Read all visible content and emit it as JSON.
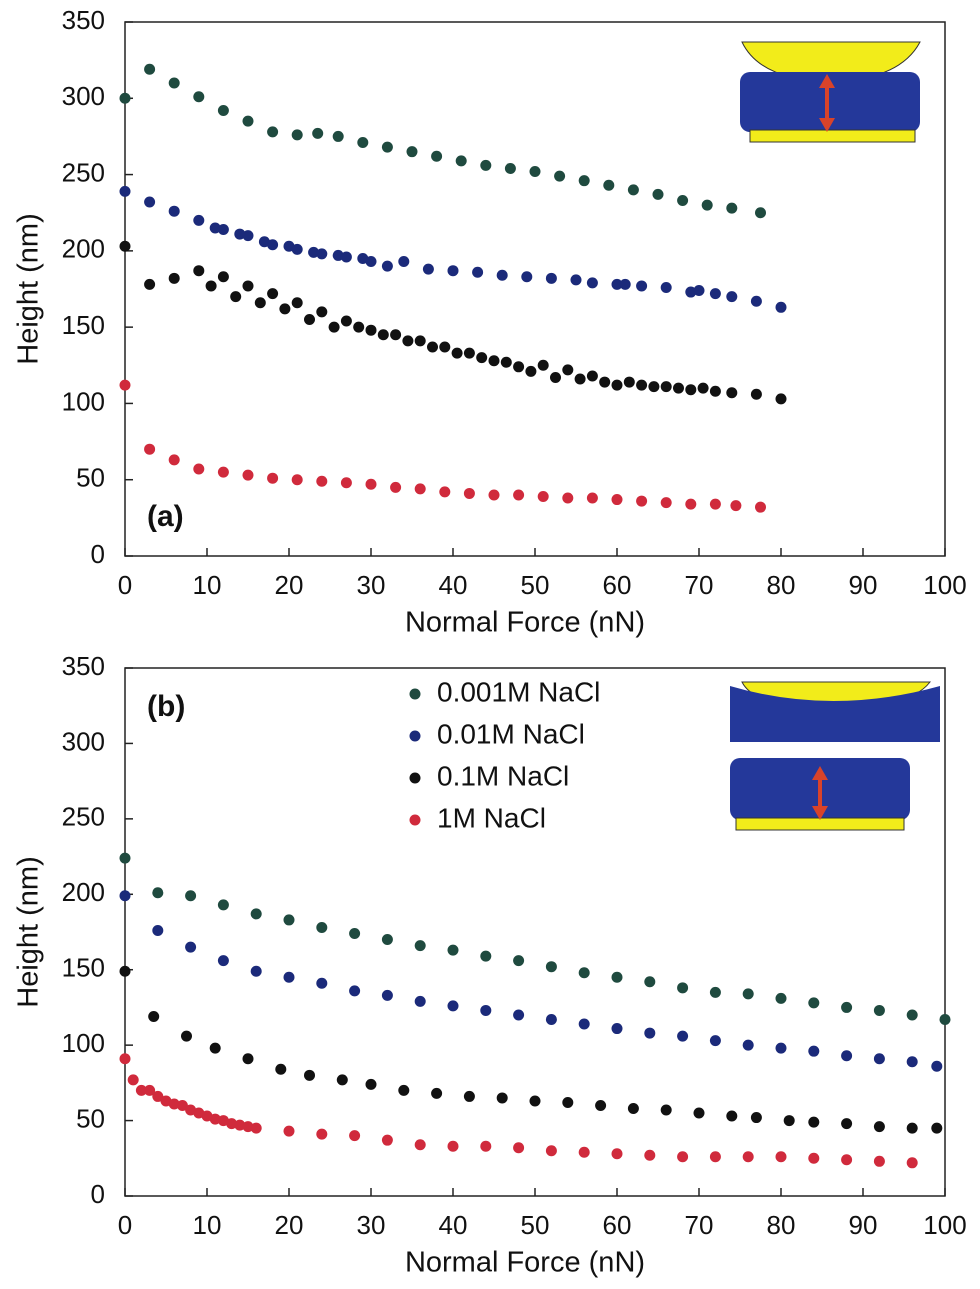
{
  "chart_data": [
    {
      "type": "scatter",
      "annotation": "(a)",
      "xlabel": "Normal Force (nN)",
      "ylabel": "Height (nm)",
      "xlim": [
        0,
        100
      ],
      "ylim": [
        0,
        350
      ],
      "xticks": [
        0,
        10,
        20,
        30,
        40,
        50,
        60,
        70,
        80,
        90,
        100
      ],
      "yticks": [
        0,
        50,
        100,
        150,
        200,
        250,
        300,
        350
      ],
      "series": [
        {
          "color": "#1f4a3f",
          "x": [
            0,
            3,
            6,
            9,
            12,
            15,
            18,
            21,
            23.5,
            26,
            29,
            32,
            35,
            38,
            41,
            44,
            47,
            50,
            53,
            56,
            59,
            62,
            65,
            68,
            71,
            74,
            77.5
          ],
          "values": [
            300,
            319,
            310,
            301,
            292,
            285,
            278,
            276,
            277,
            275,
            271,
            268,
            265,
            262,
            259,
            256,
            254,
            252,
            249,
            246,
            243,
            240,
            237,
            233,
            230,
            228,
            225
          ]
        },
        {
          "color": "#1b2a7a",
          "x": [
            0,
            3,
            6,
            9,
            11,
            12,
            14,
            15,
            17,
            18,
            20,
            21,
            23,
            24,
            26,
            27,
            29,
            30,
            32,
            34,
            37,
            40,
            43,
            46,
            49,
            52,
            55,
            57,
            60,
            61,
            63,
            66,
            69,
            70,
            72,
            74,
            77,
            80
          ],
          "values": [
            239,
            232,
            226,
            220,
            215,
            214,
            211,
            210,
            206,
            204,
            203,
            201,
            199,
            198,
            197,
            196,
            195,
            193,
            190,
            193,
            188,
            187,
            186,
            184,
            183,
            182,
            181,
            179,
            178,
            178,
            177,
            176,
            173,
            174,
            172,
            170,
            167,
            163
          ]
        },
        {
          "color": "#111111",
          "x": [
            0,
            3,
            6,
            9,
            10.5,
            12,
            13.5,
            15,
            16.5,
            18,
            19.5,
            21,
            22.5,
            24,
            25.5,
            27,
            28.5,
            30,
            31.5,
            33,
            34.5,
            36,
            37.5,
            39,
            40.5,
            42,
            43.5,
            45,
            46.5,
            48,
            49.5,
            51,
            52.5,
            54,
            55.5,
            57,
            58.5,
            60,
            61.5,
            63,
            64.5,
            66,
            67.5,
            69,
            70.5,
            72,
            74,
            77,
            80
          ],
          "values": [
            203,
            178,
            182,
            187,
            177,
            183,
            170,
            177,
            166,
            172,
            162,
            166,
            155,
            160,
            150,
            154,
            150,
            148,
            145,
            145,
            141,
            141,
            137,
            137,
            133,
            133,
            130,
            128,
            127,
            124,
            121,
            125,
            117,
            122,
            116,
            118,
            114,
            112,
            114,
            112,
            111,
            111,
            110,
            109,
            110,
            108,
            107,
            106,
            103
          ]
        },
        {
          "color": "#d02a3c",
          "x": [
            0,
            3,
            6,
            9,
            12,
            15,
            18,
            21,
            24,
            27,
            30,
            33,
            36,
            39,
            42,
            45,
            48,
            51,
            54,
            57,
            60,
            63,
            66,
            69,
            72,
            74.5,
            77.5
          ],
          "values": [
            112,
            70,
            63,
            57,
            55,
            53,
            51,
            50,
            49,
            48,
            47,
            45,
            44,
            42,
            41,
            40,
            40,
            39,
            38,
            38,
            37,
            36,
            35,
            34,
            34,
            33,
            32
          ]
        }
      ]
    },
    {
      "type": "scatter",
      "annotation": "(b)",
      "xlabel": "Normal Force (nN)",
      "ylabel": "Height (nm)",
      "legend": "upper center",
      "xlim": [
        0,
        100
      ],
      "ylim": [
        0,
        350
      ],
      "xticks": [
        0,
        10,
        20,
        30,
        40,
        50,
        60,
        70,
        80,
        90,
        100
      ],
      "yticks": [
        0,
        50,
        100,
        150,
        200,
        250,
        300,
        350
      ],
      "series": [
        {
          "name": "0.001M NaCl",
          "color": "#1f4a3f",
          "x": [
            0,
            4,
            8,
            12,
            16,
            20,
            24,
            28,
            32,
            36,
            40,
            44,
            48,
            52,
            56,
            60,
            64,
            68,
            72,
            76,
            80,
            84,
            88,
            92,
            96,
            100
          ],
          "values": [
            224,
            201,
            199,
            193,
            187,
            183,
            178,
            174,
            170,
            166,
            163,
            159,
            156,
            152,
            148,
            145,
            142,
            138,
            135,
            134,
            131,
            128,
            125,
            123,
            120,
            117
          ]
        },
        {
          "name": "0.01M NaCl",
          "color": "#1b2a7a",
          "x": [
            0,
            4,
            8,
            12,
            16,
            20,
            24,
            28,
            32,
            36,
            40,
            44,
            48,
            52,
            56,
            60,
            64,
            68,
            72,
            76,
            80,
            84,
            88,
            92,
            96,
            99
          ],
          "values": [
            199,
            176,
            165,
            156,
            149,
            145,
            141,
            136,
            133,
            129,
            126,
            123,
            120,
            117,
            114,
            111,
            108,
            106,
            103,
            100,
            98,
            96,
            93,
            91,
            89,
            86
          ]
        },
        {
          "name": "0.1M NaCl",
          "color": "#111111",
          "x": [
            0,
            3.5,
            7.5,
            11,
            15,
            19,
            22.5,
            26.5,
            30,
            34,
            38,
            42,
            46,
            50,
            54,
            58,
            62,
            66,
            70,
            74,
            77,
            81,
            84,
            88,
            92,
            96,
            99
          ],
          "values": [
            149,
            119,
            106,
            98,
            91,
            84,
            80,
            77,
            74,
            70,
            68,
            66,
            65,
            63,
            62,
            60,
            58,
            57,
            55,
            53,
            52,
            50,
            49,
            48,
            46,
            45,
            45
          ]
        },
        {
          "name": "1M NaCl",
          "color": "#d02a3c",
          "x": [
            0,
            1,
            2,
            3,
            4,
            5,
            6,
            7,
            8,
            9,
            10,
            11,
            12,
            13,
            14,
            15,
            16,
            20,
            24,
            28,
            32,
            36,
            40,
            44,
            48,
            52,
            56,
            60,
            64,
            68,
            72,
            76,
            80,
            84,
            88,
            92,
            96
          ],
          "values": [
            91,
            77,
            70,
            70,
            66,
            63,
            61,
            60,
            57,
            55,
            53,
            51,
            50,
            48,
            47,
            46,
            45,
            43,
            41,
            40,
            37,
            34,
            33,
            33,
            32,
            30,
            29,
            28,
            27,
            26,
            26,
            26,
            26,
            25,
            24,
            23,
            22
          ]
        }
      ]
    }
  ]
}
